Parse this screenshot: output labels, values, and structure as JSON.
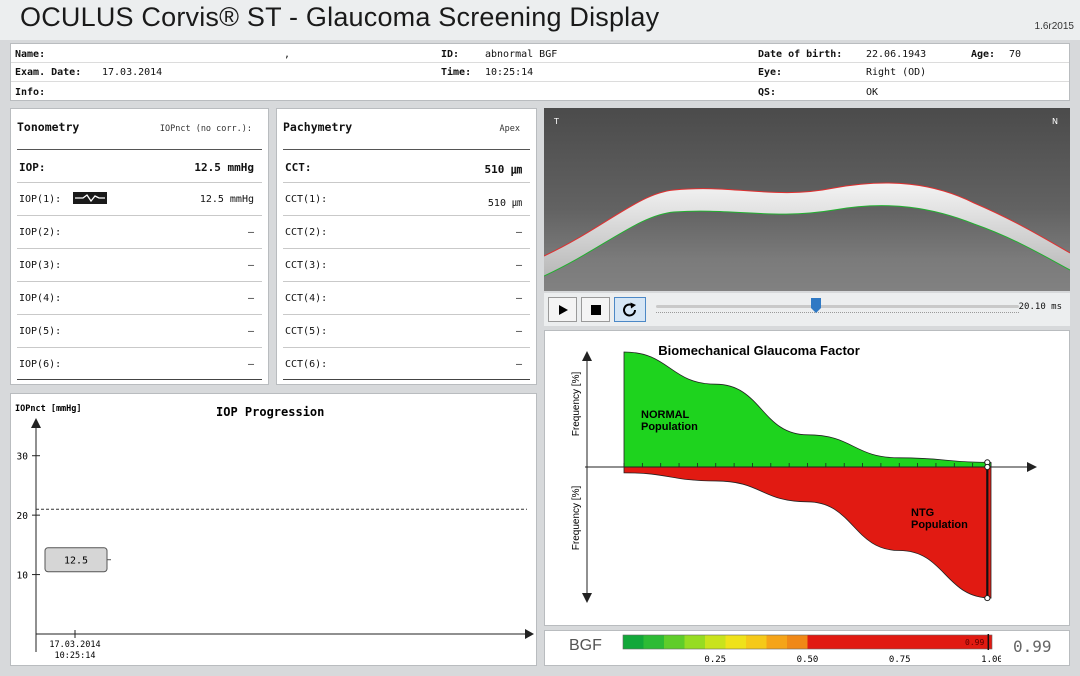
{
  "header": {
    "title": "OCULUS Corvis® ST - Glaucoma Screening Display",
    "version": "1.6r2015"
  },
  "patient": {
    "name_label": "Name:",
    "name_value": ",",
    "id_label": "ID:",
    "id_value": "abnormal BGF",
    "dob_label": "Date of birth:",
    "dob_value": "22.06.1943",
    "age_label": "Age:",
    "age_value": "70",
    "exam_label": "Exam. Date:",
    "exam_value": "17.03.2014",
    "time_label": "Time:",
    "time_value": "10:25:14",
    "eye_label": "Eye:",
    "eye_value": "Right (OD)",
    "info_label": "Info:",
    "qs_label": "QS:",
    "qs_value": "OK"
  },
  "tonometry": {
    "title": "Tonometry",
    "subtitle": "IOPnct (no corr.):",
    "main": {
      "label": "IOP:",
      "value": "12.5 mmHg"
    },
    "rows": [
      {
        "label": "IOP(1):",
        "value": "12.5 mmHg",
        "has_icon": true
      },
      {
        "label": "IOP(2):",
        "value": "–"
      },
      {
        "label": "IOP(3):",
        "value": "–"
      },
      {
        "label": "IOP(4):",
        "value": "–"
      },
      {
        "label": "IOP(5):",
        "value": "–"
      },
      {
        "label": "IOP(6):",
        "value": "–"
      }
    ]
  },
  "pachymetry": {
    "title": "Pachymetry",
    "subtitle": "Apex",
    "main": {
      "label": "CCT:",
      "value": "510 ㎛"
    },
    "rows": [
      {
        "label": "CCT(1):",
        "value": "510 ㎛"
      },
      {
        "label": "CCT(2):",
        "value": "–"
      },
      {
        "label": "CCT(3):",
        "value": "–"
      },
      {
        "label": "CCT(4):",
        "value": "–"
      },
      {
        "label": "CCT(5):",
        "value": "–"
      },
      {
        "label": "CCT(6):",
        "value": "–"
      }
    ]
  },
  "scheimpflug": {
    "left_marker": "T",
    "right_marker": "N"
  },
  "playback": {
    "play_icon": "play-icon",
    "stop_icon": "stop-icon",
    "loop_icon": "loop-icon",
    "position": 0.44,
    "time": "20.10 ms"
  },
  "chart_data": [
    {
      "type": "line",
      "title": "IOP Progression",
      "ylabel": "IOPnct [mmHg]",
      "ylim": [
        0,
        35
      ],
      "yticks": [
        10,
        20,
        30
      ],
      "reference_line": 21,
      "x": [
        "17.03.2014 10:25:14"
      ],
      "x_tick_date": "17.03.2014",
      "x_tick_time": "10:25:14",
      "values": [
        12.5
      ],
      "point_labels": [
        "12.5"
      ]
    },
    {
      "type": "area",
      "title": "Biomechanical Glaucoma Factor",
      "ylabel_top": "Frequency [%]",
      "ylabel_bottom": "Frequency [%]",
      "xlim": [
        0,
        1
      ],
      "series": [
        {
          "name": "NORMAL Population",
          "name_line1": "NORMAL",
          "name_line2": "Population",
          "color": "#1ed31e",
          "x": [
            0,
            0.25,
            0.5,
            0.75,
            1.0
          ],
          "values": [
            100,
            72,
            28,
            8,
            4
          ]
        },
        {
          "name": "NTG Population",
          "name_line1": "NTG",
          "name_line2": "Population",
          "color": "#e11a12",
          "x": [
            0,
            0.25,
            0.5,
            0.75,
            1.0
          ],
          "values": [
            5,
            12,
            30,
            72,
            113
          ]
        }
      ],
      "marker_x": 0.99
    }
  ],
  "bgf_scale": {
    "label": "BGF",
    "value": "0.99",
    "bar_value_label": "0.99",
    "value_fraction": 0.99,
    "ticks": [
      "0.25",
      "0.50",
      "0.75",
      "1.00"
    ],
    "segment_colors": [
      "#12a83a",
      "#2dbb35",
      "#5fcd2a",
      "#96dc22",
      "#c9e31c",
      "#efe21a",
      "#f5c919",
      "#f5a418",
      "#f08817",
      "#e11a12"
    ],
    "red_start": 0.5
  }
}
